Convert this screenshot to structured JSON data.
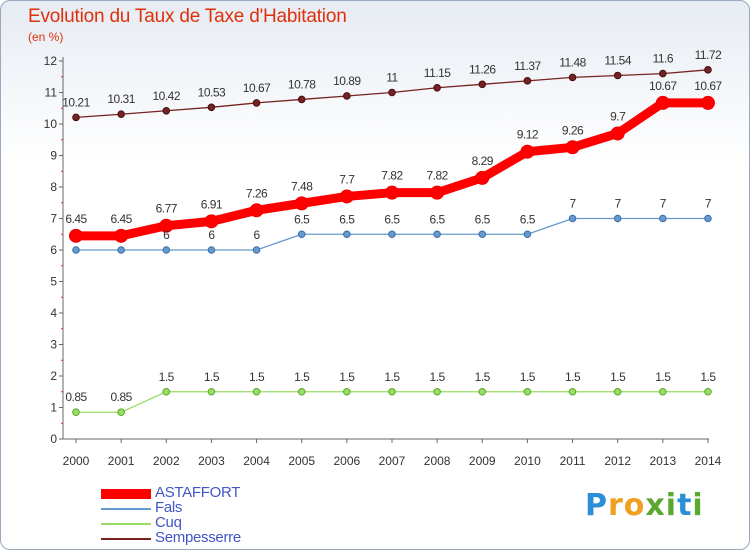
{
  "chart_data": {
    "type": "line",
    "title": "Evolution du Taux de Taxe d'Habitation",
    "subtitle": "(en %)",
    "x": [
      "2000",
      "2001",
      "2002",
      "2003",
      "2004",
      "2005",
      "2006",
      "2007",
      "2008",
      "2009",
      "2010",
      "2011",
      "2012",
      "2013",
      "2014"
    ],
    "yticks": [
      "0",
      "1",
      "2",
      "3",
      "4",
      "5",
      "6",
      "7",
      "8",
      "9",
      "10",
      "11",
      "12"
    ],
    "ylim": [
      0,
      12
    ],
    "grid": false,
    "legend_position": "bottom-left",
    "series": [
      {
        "name": "ASTAFFORT",
        "color": "#ff0000",
        "values": [
          6.45,
          6.45,
          6.77,
          6.91,
          7.26,
          7.48,
          7.7,
          7.82,
          7.82,
          8.29,
          9.12,
          9.26,
          9.7,
          10.67,
          10.67
        ],
        "labels": [
          "6.45",
          "6.45",
          "6.77",
          "6.91",
          "7.26",
          "7.48",
          "7.7",
          "7.82",
          "7.82",
          "8.29",
          "9.12",
          "9.26",
          "9.7",
          "10.67",
          "10.67"
        ]
      },
      {
        "name": "Fals",
        "color": "#6699cc",
        "values": [
          6,
          6,
          6,
          6,
          6,
          6.5,
          6.5,
          6.5,
          6.5,
          6.5,
          6.5,
          7,
          7,
          7,
          7
        ],
        "labels": [
          "",
          "",
          "6",
          "6",
          "6",
          "6.5",
          "6.5",
          "6.5",
          "6.5",
          "6.5",
          "6.5",
          "7",
          "7",
          "7",
          "7"
        ]
      },
      {
        "name": "Cuq",
        "color": "#99dd66",
        "values": [
          0.85,
          0.85,
          1.5,
          1.5,
          1.5,
          1.5,
          1.5,
          1.5,
          1.5,
          1.5,
          1.5,
          1.5,
          1.5,
          1.5,
          1.5
        ],
        "labels": [
          "0.85",
          "0.85",
          "1.5",
          "1.5",
          "1.5",
          "1.5",
          "1.5",
          "1.5",
          "1.5",
          "1.5",
          "1.5",
          "1.5",
          "1.5",
          "1.5",
          "1.5"
        ]
      },
      {
        "name": "Sempesserre",
        "color": "#772222",
        "values": [
          10.21,
          10.31,
          10.42,
          10.53,
          10.67,
          10.78,
          10.89,
          11,
          11.15,
          11.26,
          11.37,
          11.48,
          11.54,
          11.6,
          11.72
        ],
        "labels": [
          "10.21",
          "10.31",
          "10.42",
          "10.53",
          "10.67",
          "10.78",
          "10.89",
          "11",
          "11.15",
          "11.26",
          "11.37",
          "11.48",
          "11.54",
          "11.6",
          "11.72"
        ]
      }
    ]
  },
  "logo": {
    "letters": [
      "P",
      "r",
      "o",
      "x",
      "i",
      "t",
      "i"
    ],
    "colors": [
      "#2a8fd6",
      "#f0a020",
      "#f0a020",
      "#5aa830",
      "#5aa830",
      "#2a8fd6",
      "#5aa830"
    ]
  }
}
